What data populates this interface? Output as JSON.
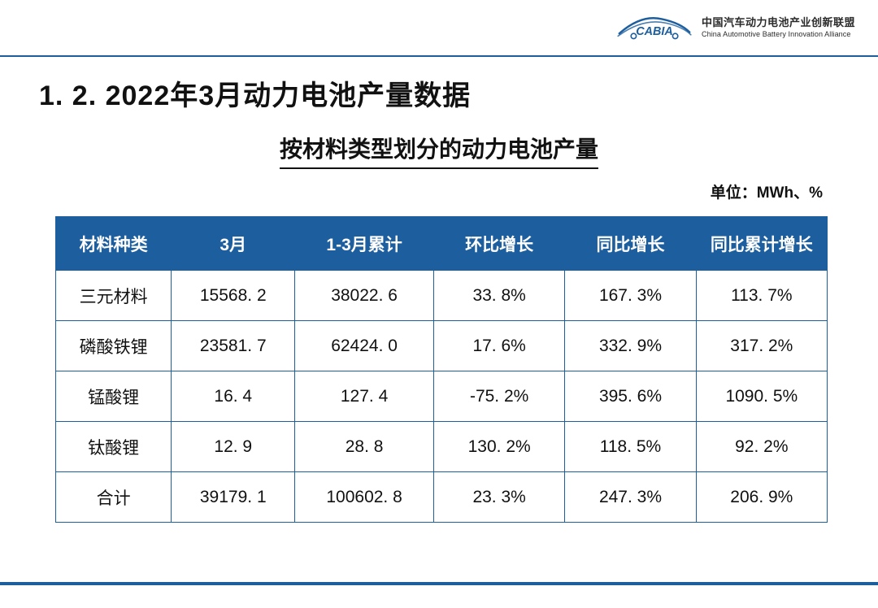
{
  "colors": {
    "accent": "#1d5e9e",
    "accent_dark": "#16477a",
    "text": "#111111",
    "table_border": "#1d5e9e",
    "header_bg": "#1d5e9e",
    "header_border_bottom": "#1d5e9e",
    "footer_line": "#1d5e9e",
    "subtitle_underline": "#111111"
  },
  "logo": {
    "acronym": "CABIA",
    "name_cn": "中国汽车动力电池产业创新联盟",
    "name_en": "China Automotive Battery Innovation Alliance",
    "swoosh_color": "#1d5e9e",
    "text_color": "#1d5e9e"
  },
  "title": "1. 2.  2022年3月动力电池产量数据",
  "subtitle": "按材料类型划分的动力电池产量",
  "unit_label": "单位：MWh、%",
  "table": {
    "type": "table",
    "header_bg": "#1d5e9e",
    "header_text_color": "#ffffff",
    "border_color": "#1d5e9e",
    "cell_text_color": "#111111",
    "columns": [
      {
        "label": "材料种类",
        "width": "15%"
      },
      {
        "label": "3月",
        "width": "16%"
      },
      {
        "label": "1-3月累计",
        "width": "18%"
      },
      {
        "label": "环比增长",
        "width": "17%"
      },
      {
        "label": "同比增长",
        "width": "17%"
      },
      {
        "label": "同比累计增长",
        "width": "17%"
      }
    ],
    "rows": [
      [
        "三元材料",
        "15568. 2",
        "38022. 6",
        "33. 8%",
        "167. 3%",
        "113. 7%"
      ],
      [
        "磷酸铁锂",
        "23581. 7",
        "62424. 0",
        "17. 6%",
        "332. 9%",
        "317. 2%"
      ],
      [
        "锰酸锂",
        "16. 4",
        "127. 4",
        "-75. 2%",
        "395. 6%",
        "1090. 5%"
      ],
      [
        "钛酸锂",
        "12. 9",
        "28. 8",
        "130. 2%",
        "118. 5%",
        "92. 2%"
      ],
      [
        "合计",
        "39179. 1",
        "100602. 8",
        "23. 3%",
        "247. 3%",
        "206. 9%"
      ]
    ]
  }
}
